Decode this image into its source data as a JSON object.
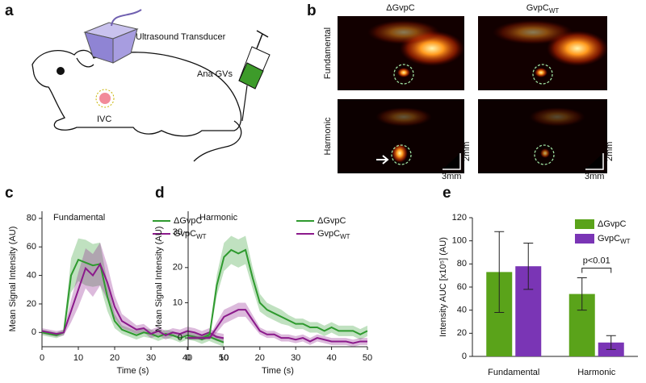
{
  "panel_labels": [
    "a",
    "b",
    "c",
    "d",
    "e"
  ],
  "diagram": {
    "transducer": "Ultrasound Transducer",
    "syringe": "Ana GVs",
    "vessel": "IVC"
  },
  "images": {
    "columns": [
      {
        "text": "ΔGvpC"
      },
      {
        "text": "GvpC",
        "sub": "WT"
      }
    ],
    "rows": [
      "Fundamental",
      "Harmonic"
    ],
    "scale_y": "2mm",
    "scale_x": "3mm"
  },
  "chart_data": [
    {
      "type": "line",
      "title": "Fundamental",
      "xlabel": "Time (s)",
      "ylabel": "Mean Signal Intensity (AU)",
      "x": [
        0,
        2,
        4,
        6,
        8,
        10,
        12,
        14,
        16,
        18,
        20,
        22,
        24,
        26,
        28,
        30,
        32,
        34,
        36,
        38,
        40,
        42,
        44,
        46,
        48,
        50
      ],
      "xlim": [
        0,
        50
      ],
      "xticks": [
        0,
        10,
        20,
        30,
        40,
        50
      ],
      "ylim": [
        -10,
        85
      ],
      "yticks": [
        0,
        20,
        40,
        60,
        80
      ],
      "legend": "upper right",
      "series": [
        {
          "name": "ΔGvpC",
          "color": "#2e9a2e",
          "values": [
            0,
            -1,
            -2,
            0,
            40,
            51,
            49,
            47,
            48,
            25,
            8,
            2,
            0,
            -2,
            0,
            -1,
            -3,
            -1,
            -2,
            -4,
            -2,
            -3,
            -5,
            -3,
            -5,
            -7
          ],
          "error": [
            2,
            2,
            2,
            2,
            12,
            15,
            16,
            15,
            15,
            10,
            5,
            3,
            3,
            3,
            3,
            3,
            3,
            3,
            3,
            3,
            3,
            3,
            3,
            3,
            3,
            3
          ]
        },
        {
          "name": "GvpC",
          "name_subscript": "WT",
          "color": "#8b1a8b",
          "values": [
            1,
            0,
            -1,
            0,
            15,
            30,
            45,
            40,
            48,
            35,
            18,
            8,
            5,
            2,
            3,
            -1,
            1,
            -2,
            0,
            -1,
            1,
            0,
            -2,
            0,
            -3,
            -4
          ],
          "error": [
            2,
            2,
            2,
            2,
            8,
            12,
            14,
            15,
            15,
            12,
            8,
            5,
            4,
            3,
            3,
            3,
            3,
            3,
            3,
            3,
            3,
            3,
            3,
            3,
            3,
            3
          ]
        }
      ]
    },
    {
      "type": "line",
      "title": "Harmonic",
      "xlabel": "Time (s)",
      "ylabel": "Mean Signal Intensity (AU)",
      "x": [
        0,
        2,
        4,
        6,
        8,
        10,
        12,
        14,
        16,
        18,
        20,
        22,
        24,
        26,
        28,
        30,
        32,
        34,
        36,
        38,
        40,
        42,
        44,
        46,
        48,
        50
      ],
      "xlim": [
        0,
        50
      ],
      "xticks": [
        0,
        10,
        20,
        30,
        40,
        50
      ],
      "ylim": [
        -2.5,
        36
      ],
      "yticks": [
        0,
        10,
        20,
        30
      ],
      "legend": "upper right",
      "series": [
        {
          "name": "ΔGvpC",
          "color": "#2e9a2e",
          "values": [
            0,
            0,
            0,
            1,
            15,
            23,
            25,
            24,
            25,
            17,
            10,
            8,
            7,
            6,
            5,
            4,
            4,
            3,
            3,
            2,
            3,
            2,
            2,
            2,
            1,
            2
          ],
          "error": [
            0.5,
            0.5,
            0.5,
            0.8,
            3,
            4,
            4,
            4,
            4,
            3,
            2.5,
            2,
            2,
            2,
            1.5,
            1.5,
            1.5,
            1.5,
            1.5,
            1.5,
            1.5,
            1.5,
            1.5,
            1.5,
            1.5,
            1.5
          ]
        },
        {
          "name": "GvpC",
          "name_subscript": "WT",
          "color": "#8b1a8b",
          "values": [
            0,
            0,
            0,
            0,
            3,
            6,
            7,
            8,
            8,
            5,
            2,
            1,
            1,
            0,
            0,
            -0.5,
            0,
            -1,
            0,
            -0.5,
            -1,
            -1,
            -1,
            -1.5,
            -1,
            -1
          ],
          "error": [
            0.5,
            0.5,
            0.5,
            0.5,
            1.5,
            2,
            2,
            2,
            2,
            1.5,
            1,
            1,
            1,
            1,
            1,
            1,
            1,
            1,
            1,
            1,
            1,
            1,
            1,
            1,
            1,
            1
          ]
        }
      ]
    },
    {
      "type": "bar",
      "ylabel": "Intensity AUC [x10⁵] (AU)",
      "categories": [
        "Fundamental",
        "Harmonic"
      ],
      "ylim": [
        0,
        120
      ],
      "yticks": [
        0,
        20,
        40,
        60,
        80,
        100,
        120
      ],
      "legend": "upper right",
      "annotation": "p<0.01",
      "series": [
        {
          "name": "ΔGvpC",
          "color": "#5aa31a",
          "values": [
            73,
            54
          ],
          "error": [
            35,
            14
          ]
        },
        {
          "name": "GvpC",
          "name_subscript": "WT",
          "color": "#7a35b5",
          "values": [
            78,
            12
          ],
          "error": [
            20,
            6
          ]
        }
      ]
    }
  ]
}
